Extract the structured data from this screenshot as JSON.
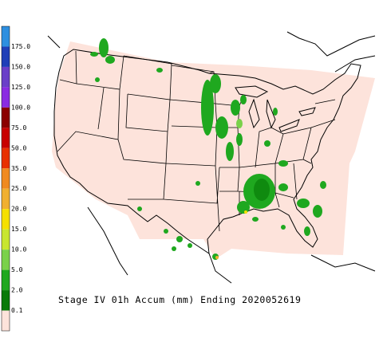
{
  "legend": [
    {
      "label": "175.0",
      "color": "#2d8fe0"
    },
    {
      "label": "150.0",
      "color": "#1f3fb8"
    },
    {
      "label": "125.0",
      "color": "#6a3fc8"
    },
    {
      "label": "100.0",
      "color": "#8a2be2"
    },
    {
      "label": "75.0",
      "color": "#8b0000"
    },
    {
      "label": "50.0",
      "color": "#c80000"
    },
    {
      "label": "35.0",
      "color": "#e83000"
    },
    {
      "label": "25.0",
      "color": "#f08a20"
    },
    {
      "label": "20.0",
      "color": "#f0b030"
    },
    {
      "label": "15.0",
      "color": "#f5e000"
    },
    {
      "label": "10.0",
      "color": "#c8e630"
    },
    {
      "label": "5.0",
      "color": "#7ad14a"
    },
    {
      "label": "2.0",
      "color": "#1fa81f"
    },
    {
      "label": "0.1",
      "color": "#0a7a0a"
    }
  ],
  "below_color": "#fde3db",
  "title": "Stage IV 01h Accum (mm) Ending 2020052619"
}
